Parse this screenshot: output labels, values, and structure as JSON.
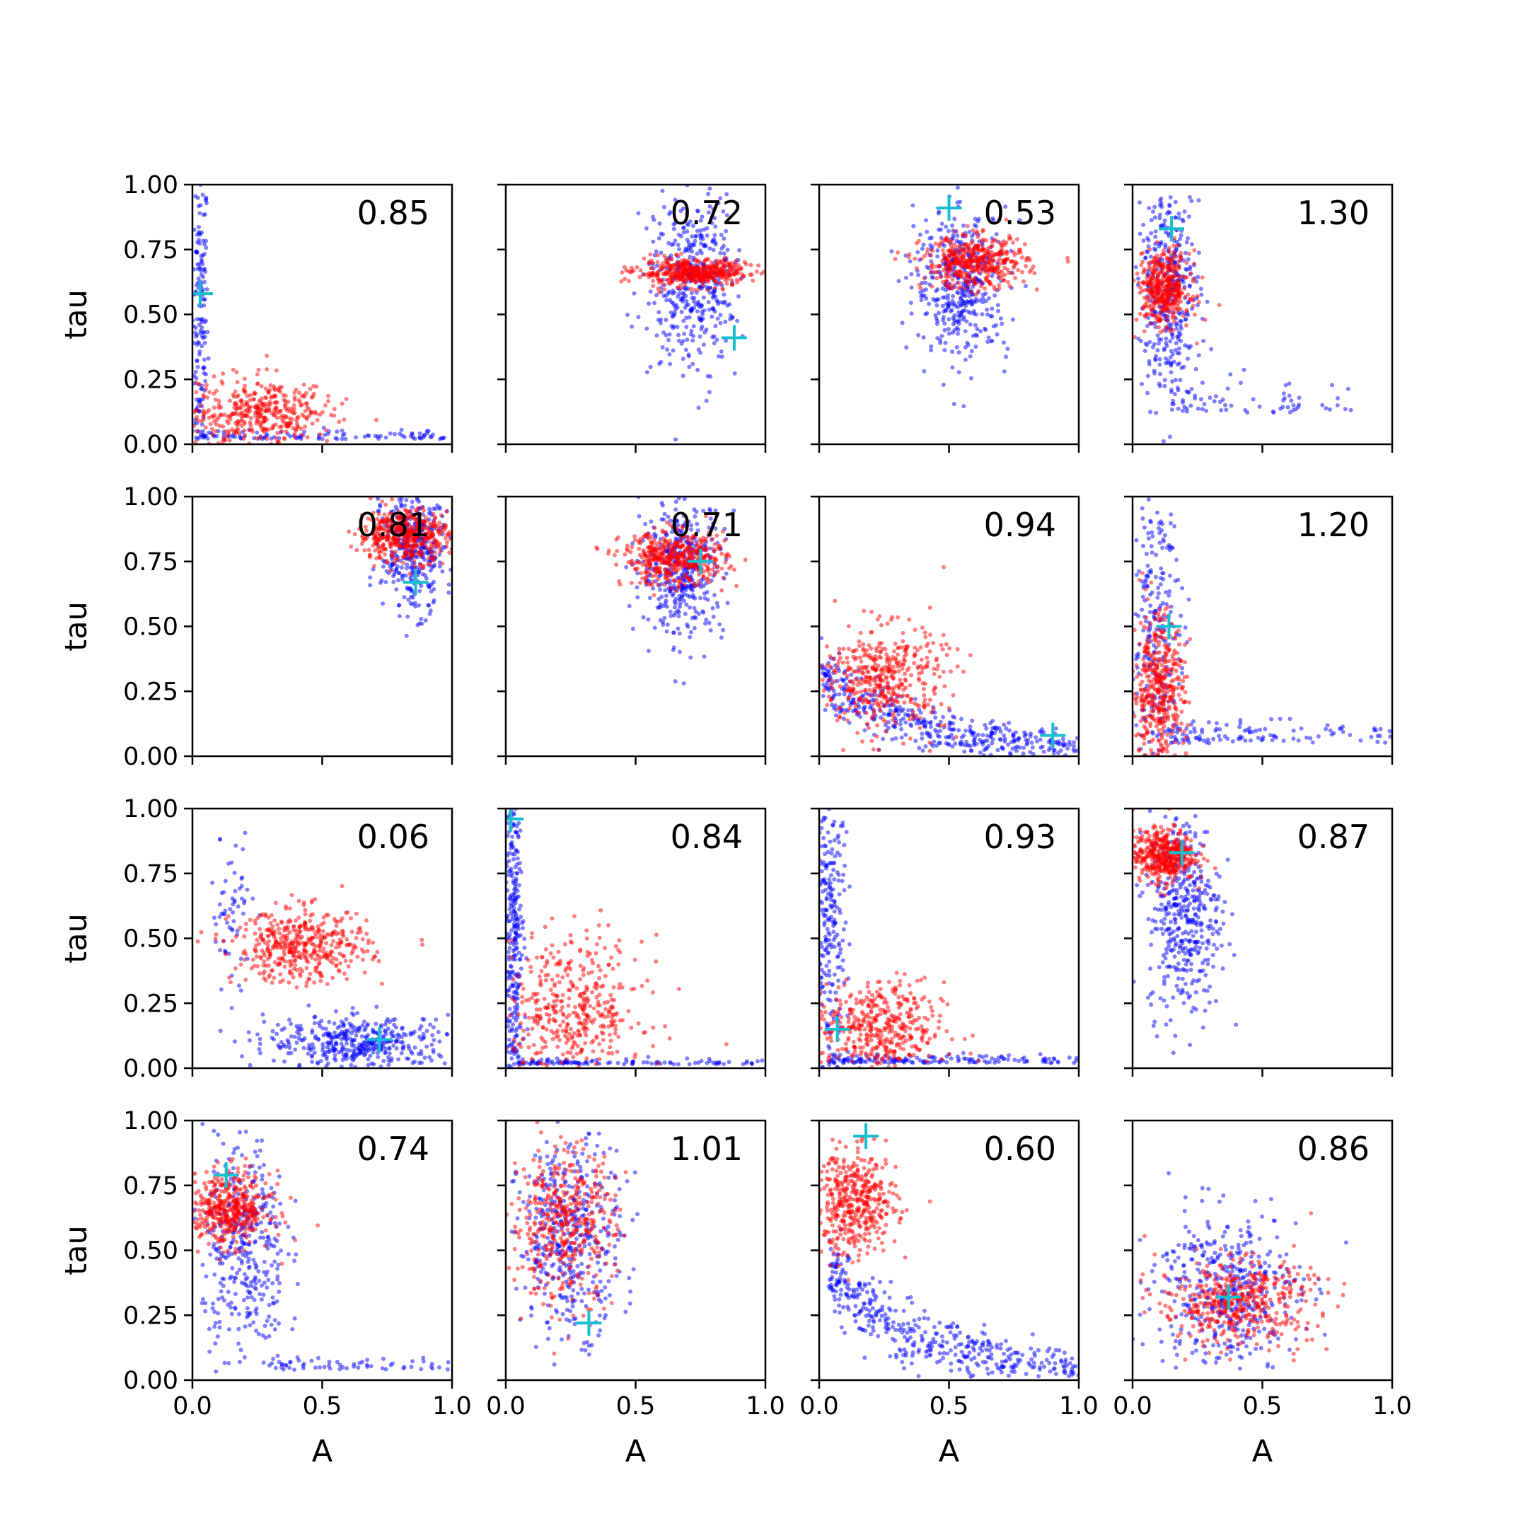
{
  "chart_data": {
    "type": "scatter",
    "layout": {
      "rows": 4,
      "cols": 4
    },
    "xlabel": "A",
    "ylabel": "tau",
    "xlim": [
      0,
      1
    ],
    "ylim": [
      0,
      1
    ],
    "x_ticks": [
      "0.0",
      "0.5",
      "1.0"
    ],
    "y_ticks": [
      "0.00",
      "0.25",
      "0.50",
      "0.75",
      "1.00"
    ],
    "colors": {
      "series_blue": "#0000ff",
      "series_red": "#ff0000",
      "marker": "#17becf"
    },
    "panels": [
      {
        "label": "0.85",
        "marker": [
          0.03,
          0.58
        ],
        "blue": [
          {
            "type": "band",
            "cx": 0.03,
            "cy": 0.5,
            "sx": 0.015,
            "sy": 0.3,
            "n": 160
          },
          {
            "type": "curve",
            "x0": 0.02,
            "x1": 1.0,
            "y": 0.02,
            "spread": 0.015,
            "n": 110
          }
        ],
        "red": [
          {
            "type": "blob",
            "cx": 0.25,
            "cy": 0.12,
            "sx": 0.14,
            "sy": 0.07,
            "n": 420
          }
        ]
      },
      {
        "label": "0.72",
        "marker": [
          0.88,
          0.41
        ],
        "blue": [
          {
            "type": "blob",
            "cx": 0.72,
            "cy": 0.62,
            "sx": 0.08,
            "sy": 0.16,
            "n": 420
          }
        ],
        "red": [
          {
            "type": "blob",
            "cx": 0.72,
            "cy": 0.66,
            "sx": 0.11,
            "sy": 0.025,
            "n": 460
          }
        ]
      },
      {
        "label": "0.53",
        "marker": [
          0.5,
          0.91
        ],
        "blue": [
          {
            "type": "blob",
            "cx": 0.55,
            "cy": 0.62,
            "sx": 0.09,
            "sy": 0.14,
            "n": 420
          }
        ],
        "red": [
          {
            "type": "blob",
            "cx": 0.6,
            "cy": 0.7,
            "sx": 0.1,
            "sy": 0.05,
            "n": 440
          }
        ]
      },
      {
        "label": "1.30",
        "marker": [
          0.15,
          0.83
        ],
        "blue": [
          {
            "type": "blob",
            "cx": 0.14,
            "cy": 0.6,
            "sx": 0.06,
            "sy": 0.2,
            "n": 360
          },
          {
            "type": "curve",
            "x0": 0.15,
            "x1": 0.9,
            "y": 0.12,
            "spread": 0.06,
            "n": 70
          }
        ],
        "red": [
          {
            "type": "blob",
            "cx": 0.12,
            "cy": 0.6,
            "sx": 0.05,
            "sy": 0.07,
            "n": 420
          }
        ]
      },
      {
        "label": "0.81",
        "marker": [
          0.86,
          0.67
        ],
        "blue": [
          {
            "type": "blob",
            "cx": 0.85,
            "cy": 0.8,
            "sx": 0.06,
            "sy": 0.12,
            "n": 380
          }
        ],
        "red": [
          {
            "type": "blob",
            "cx": 0.82,
            "cy": 0.85,
            "sx": 0.09,
            "sy": 0.05,
            "n": 460
          }
        ]
      },
      {
        "label": "0.71",
        "marker": [
          0.75,
          0.75
        ],
        "blue": [
          {
            "type": "blob",
            "cx": 0.68,
            "cy": 0.72,
            "sx": 0.08,
            "sy": 0.13,
            "n": 400
          }
        ],
        "red": [
          {
            "type": "blob",
            "cx": 0.65,
            "cy": 0.76,
            "sx": 0.1,
            "sy": 0.05,
            "n": 460
          }
        ]
      },
      {
        "label": "0.94",
        "marker": [
          0.9,
          0.08
        ],
        "blue": [
          {
            "type": "curve",
            "x0": 0.02,
            "x1": 1.0,
            "y": 0.3,
            "spread": 0.06,
            "n": 420,
            "decay": true
          }
        ],
        "red": [
          {
            "type": "blob",
            "cx": 0.25,
            "cy": 0.3,
            "sx": 0.12,
            "sy": 0.1,
            "n": 440
          }
        ]
      },
      {
        "label": "1.20",
        "marker": [
          0.14,
          0.5
        ],
        "blue": [
          {
            "type": "band",
            "cx": 0.08,
            "cy": 0.5,
            "sx": 0.05,
            "sy": 0.3,
            "n": 260
          },
          {
            "type": "curve",
            "x0": 0.15,
            "x1": 1.0,
            "y": 0.05,
            "spread": 0.04,
            "n": 110
          }
        ],
        "red": [
          {
            "type": "blob",
            "cx": 0.1,
            "cy": 0.25,
            "sx": 0.05,
            "sy": 0.15,
            "n": 440
          }
        ]
      },
      {
        "label": "0.06",
        "marker": [
          0.72,
          0.11
        ],
        "blue": [
          {
            "type": "blob",
            "cx": 0.65,
            "cy": 0.1,
            "sx": 0.18,
            "sy": 0.05,
            "n": 420
          },
          {
            "type": "band",
            "cx": 0.15,
            "cy": 0.6,
            "sx": 0.04,
            "sy": 0.15,
            "n": 60
          }
        ],
        "red": [
          {
            "type": "blob",
            "cx": 0.42,
            "cy": 0.47,
            "sx": 0.13,
            "sy": 0.07,
            "n": 440
          }
        ]
      },
      {
        "label": "0.84",
        "marker": [
          0.02,
          0.96
        ],
        "blue": [
          {
            "type": "band",
            "cx": 0.03,
            "cy": 0.5,
            "sx": 0.02,
            "sy": 0.3,
            "n": 300
          },
          {
            "type": "curve",
            "x0": 0.05,
            "x1": 1.0,
            "y": 0.015,
            "spread": 0.01,
            "n": 110
          }
        ],
        "red": [
          {
            "type": "blob",
            "cx": 0.25,
            "cy": 0.22,
            "sx": 0.14,
            "sy": 0.14,
            "n": 440
          }
        ]
      },
      {
        "label": "0.93",
        "marker": [
          0.07,
          0.15
        ],
        "blue": [
          {
            "type": "band",
            "cx": 0.04,
            "cy": 0.55,
            "sx": 0.03,
            "sy": 0.3,
            "n": 260
          },
          {
            "type": "curve",
            "x0": 0.05,
            "x1": 1.0,
            "y": 0.02,
            "spread": 0.015,
            "n": 150
          }
        ],
        "red": [
          {
            "type": "blob",
            "cx": 0.22,
            "cy": 0.15,
            "sx": 0.13,
            "sy": 0.09,
            "n": 440
          }
        ]
      },
      {
        "label": "0.87",
        "marker": [
          0.19,
          0.83
        ],
        "blue": [
          {
            "type": "blob",
            "cx": 0.2,
            "cy": 0.6,
            "sx": 0.07,
            "sy": 0.2,
            "n": 420
          }
        ],
        "red": [
          {
            "type": "blob",
            "cx": 0.12,
            "cy": 0.82,
            "sx": 0.06,
            "sy": 0.05,
            "n": 440
          }
        ]
      },
      {
        "label": "0.74",
        "marker": [
          0.13,
          0.79
        ],
        "blue": [
          {
            "type": "blob",
            "cx": 0.2,
            "cy": 0.5,
            "sx": 0.08,
            "sy": 0.22,
            "n": 380
          },
          {
            "type": "curve",
            "x0": 0.3,
            "x1": 1.0,
            "y": 0.04,
            "spread": 0.02,
            "n": 60
          }
        ],
        "red": [
          {
            "type": "blob",
            "cx": 0.14,
            "cy": 0.66,
            "sx": 0.08,
            "sy": 0.07,
            "n": 440
          }
        ]
      },
      {
        "label": "1.01",
        "marker": [
          0.32,
          0.22
        ],
        "blue": [
          {
            "type": "blob",
            "cx": 0.25,
            "cy": 0.55,
            "sx": 0.1,
            "sy": 0.18,
            "n": 420
          }
        ],
        "red": [
          {
            "type": "blob",
            "cx": 0.22,
            "cy": 0.6,
            "sx": 0.1,
            "sy": 0.15,
            "n": 440
          }
        ]
      },
      {
        "label": "0.60",
        "marker": [
          0.18,
          0.94
        ],
        "blue": [
          {
            "type": "curve",
            "x0": 0.05,
            "x1": 1.0,
            "y": 0.45,
            "spread": 0.08,
            "n": 420,
            "decay": true
          }
        ],
        "red": [
          {
            "type": "blob",
            "cx": 0.14,
            "cy": 0.68,
            "sx": 0.08,
            "sy": 0.1,
            "n": 440
          }
        ]
      },
      {
        "label": "0.86",
        "marker": [
          0.37,
          0.32
        ],
        "blue": [
          {
            "type": "blob",
            "cx": 0.36,
            "cy": 0.35,
            "sx": 0.14,
            "sy": 0.15,
            "n": 420
          }
        ],
        "red": [
          {
            "type": "blob",
            "cx": 0.4,
            "cy": 0.3,
            "sx": 0.15,
            "sy": 0.08,
            "n": 460
          }
        ]
      }
    ]
  }
}
